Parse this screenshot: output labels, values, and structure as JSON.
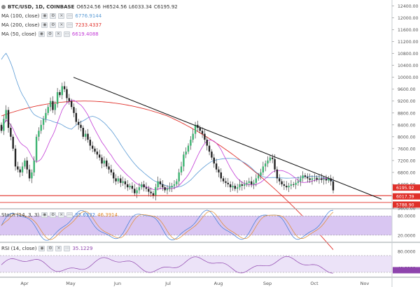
{
  "symbol_bar": {
    "symbol": "BTC/USD, 1D, COINBASE",
    "open": "O6524.56",
    "high": "H6524.56",
    "low": "L6033.34",
    "close": "C6195.92"
  },
  "indicators": [
    {
      "label": "MA (100, close)",
      "value": "6776.9144",
      "color": "#5b9bd5"
    },
    {
      "label": "MA (200, close)",
      "value": "7233.4337",
      "color": "#e0302a"
    },
    {
      "label": "MA (50, close)",
      "value": "6619.4088",
      "color": "#c23bd6"
    }
  ],
  "stoch": {
    "label": "Stoch (14, 3, 3)",
    "k": "35.6332",
    "d": "46.3914",
    "k_color": "#3a7bd5",
    "d_color": "#e08a2a",
    "levels": [
      "80.0000",
      "20.0000"
    ]
  },
  "rsi": {
    "label": "RSI (14, close)",
    "value": "35.1229",
    "color": "#8e44ad",
    "levels": [
      "80.0000",
      "40.0000"
    ]
  },
  "price_axis": [
    "12400.00",
    "12000.00",
    "11600.00",
    "11200.00",
    "10800.00",
    "10400.00",
    "10000.00",
    "9600.00",
    "9200.00",
    "8800.00",
    "8400.00",
    "8000.00",
    "7600.00",
    "7200.00",
    "6800.00",
    "6400.00",
    "6000.00",
    "5600.00"
  ],
  "price_badges": [
    {
      "text": "6195.92",
      "color": "#e0302a"
    },
    {
      "text": "6017.39",
      "color": "#e0302a"
    },
    {
      "text": "5788.90",
      "color": "#e0302a"
    }
  ],
  "time_axis": [
    "Apr",
    "May",
    "Jun",
    "Jul",
    "Aug",
    "Sep",
    "Oct",
    "Nov"
  ],
  "chart_data": {
    "type": "candlestick",
    "price_range": [
      5600,
      12600
    ],
    "trendline": {
      "from": {
        "date": "May 2",
        "price": 10000
      },
      "to": {
        "date": "Oct 29",
        "price": 5900
      }
    },
    "horizontal_levels": [
      6017.39,
      5788.9
    ],
    "close": [
      8200,
      8600,
      8900,
      8300,
      8000,
      7600,
      7000,
      6900,
      6800,
      7000,
      7200,
      6900,
      6600,
      6800,
      7200,
      8000,
      8200,
      8400,
      8600,
      8800,
      9000,
      9200,
      8900,
      9100,
      9500,
      9400,
      9700,
      9600,
      9300,
      9200,
      9000,
      8800,
      8500,
      8400,
      8300,
      8000,
      8100,
      7900,
      7700,
      7600,
      7500,
      7400,
      7300,
      7100,
      7200,
      7000,
      6900,
      6800,
      6600,
      6500,
      6600,
      6450,
      6500,
      6400,
      6300,
      6350,
      6250,
      6100,
      6200,
      6300,
      6400,
      6300,
      6250,
      6150,
      6100,
      6000,
      6300,
      6500,
      6400,
      6300,
      6200,
      6250,
      6300,
      6350,
      6400,
      6500,
      6800,
      7000,
      7400,
      7500,
      7700,
      7900,
      8100,
      8400,
      8300,
      8200,
      8100,
      7900,
      7700,
      7500,
      7300,
      7100,
      6900,
      6800,
      6600,
      6500,
      6450,
      6400,
      6300,
      6350,
      6250,
      6300,
      6400,
      6350,
      6400,
      6450,
      6500,
      6400,
      6450,
      6600,
      6700,
      6800,
      7000,
      7100,
      7200,
      7300,
      7250,
      6900,
      6600,
      6500,
      6400,
      6350,
      6300,
      6350,
      6400,
      6380,
      6450,
      6500,
      6600,
      6700,
      6650,
      6600,
      6550,
      6600,
      6620,
      6560,
      6600,
      6550,
      6580,
      6530,
      6600,
      6500,
      6195.92
    ]
  }
}
